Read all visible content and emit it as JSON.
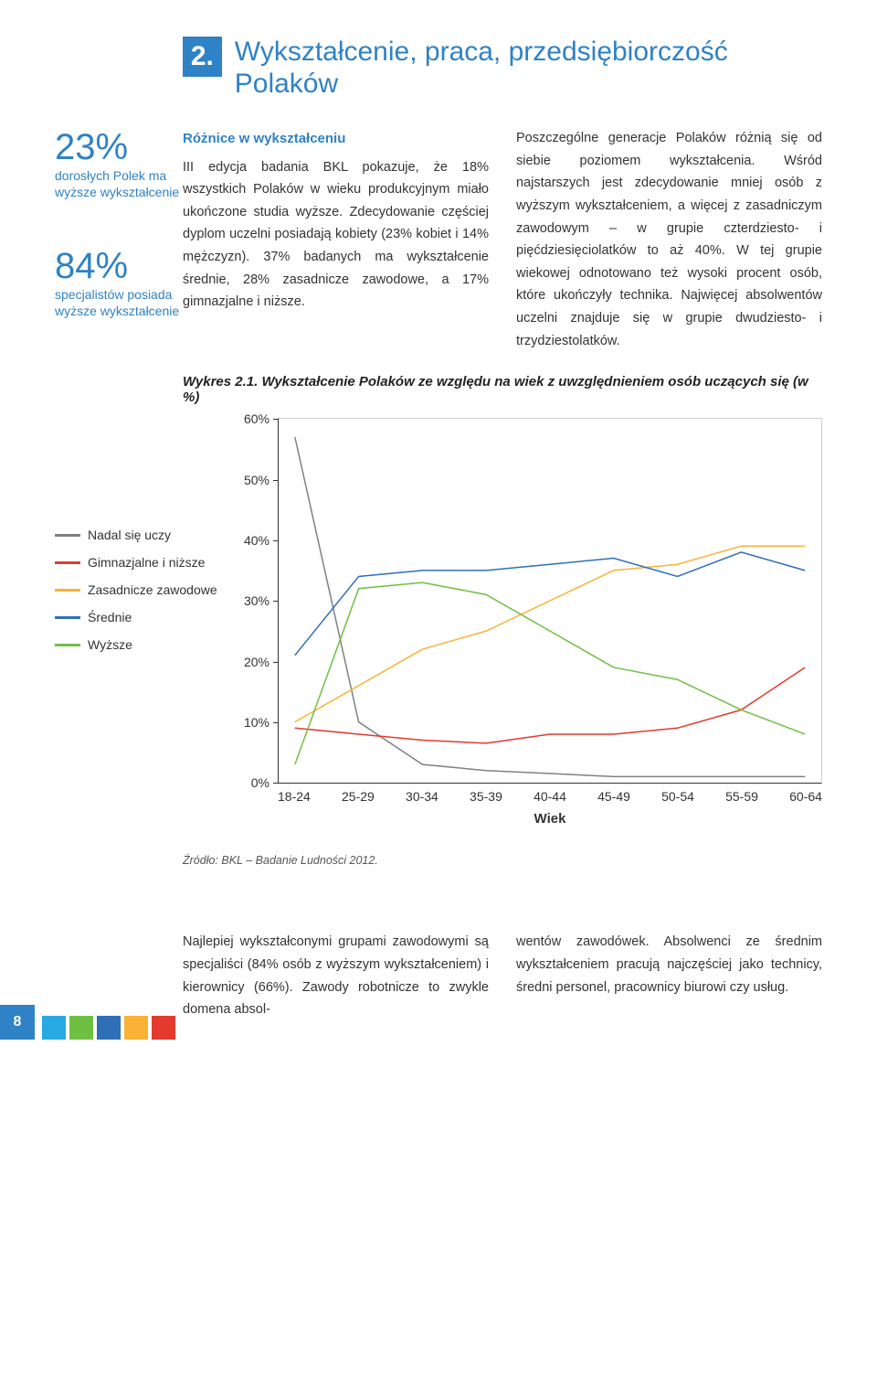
{
  "title": {
    "num": "2.",
    "text": "Wykształcenie, praca, przedsiębiorczość Polaków"
  },
  "stats": [
    {
      "pct": "23%",
      "label": "dorosłych Polek ma wyższe wykształcenie"
    },
    {
      "pct": "84%",
      "label": "specjalistów posiada wyższe wykształcenie"
    }
  ],
  "subhead": "Różnice w wykształceniu",
  "col1": "III edycja badania BKL pokazuje, że 18% wszystkich Polaków w wieku produkcyjnym miało ukończone studia wyższe. Zdecydowanie częściej dyplom uczelni posiadają kobiety (23% kobiet i 14% mężczyzn). 37% badanych ma wykształcenie średnie, 28% zasadnicze zawodowe, a 17% gimnazjalne i niższe.",
  "col2": "Poszczególne generacje Polaków różnią się od siebie poziomem wykształcenia. Wśród najstarszych jest zdecydowanie mniej osób z wyższym wykształceniem, a więcej z zasadniczym zawodowym – w grupie czterdziesto- i pięćdziesięciolatków to aż 40%. W tej grupie wiekowej odnotowano też wysoki procent osób, które ukończyły technika. Najwięcej absolwentów uczelni znajduje się w grupie dwudziesto- i trzydziestolatków.",
  "chart": {
    "title": "Wykres 2.1. Wykształcenie Polaków ze względu na wiek z uwzględnieniem osób uczących się (w %)",
    "ylim": [
      0,
      60
    ],
    "ytick_step": 10,
    "xlabels": [
      "18-24",
      "25-29",
      "30-34",
      "35-39",
      "40-44",
      "45-49",
      "50-54",
      "55-59",
      "60-64"
    ],
    "xaxis_title": "Wiek",
    "legend": [
      {
        "label": "Nadal się uczy",
        "color": "#808080"
      },
      {
        "label": "Gimnazjalne i niższe",
        "color": "#e23a2e"
      },
      {
        "label": "Zasadnicze zawodowe",
        "color": "#f9b233"
      },
      {
        "label": "Średnie",
        "color": "#2f6fb7"
      },
      {
        "label": "Wyższe",
        "color": "#6fbf44"
      }
    ],
    "series": {
      "nadal": [
        57,
        10,
        3,
        2,
        1.5,
        1,
        1,
        1,
        1
      ],
      "gimn": [
        9,
        8,
        7,
        6.5,
        8,
        8,
        9,
        12,
        19
      ],
      "zasad": [
        10,
        16,
        22,
        25,
        30,
        35,
        36,
        39,
        39
      ],
      "srednie": [
        21,
        34,
        35,
        35,
        36,
        37,
        34,
        38,
        35
      ],
      "wyzsze": [
        3,
        32,
        33,
        31,
        25,
        19,
        17,
        12,
        8
      ]
    },
    "line_width": 3,
    "colors": {
      "nadal": "#808080",
      "gimn": "#e23a2e",
      "zasad": "#f9b233",
      "srednie": "#2f6fb7",
      "wyzsze": "#6fbf44"
    }
  },
  "source": "Źródło: BKL – Badanie Ludności 2012.",
  "bottom1": "Najlepiej wykształconymi grupami zawodowymi są specjaliści (84% osób z wyższym wykształceniem) i kierownicy (66%). Zawody robotnicze to zwykle domena absol-",
  "bottom2": "wentów zawodówek. Absolwenci ze średnim wykształceniem pracują najczęściej jako technicy, średni personel, pracownicy biurowi czy usług.",
  "page_number": "8",
  "footer_colors": [
    "#27a9e1",
    "#6fbf44",
    "#2f6fb7",
    "#f9b233",
    "#e23a2e"
  ]
}
